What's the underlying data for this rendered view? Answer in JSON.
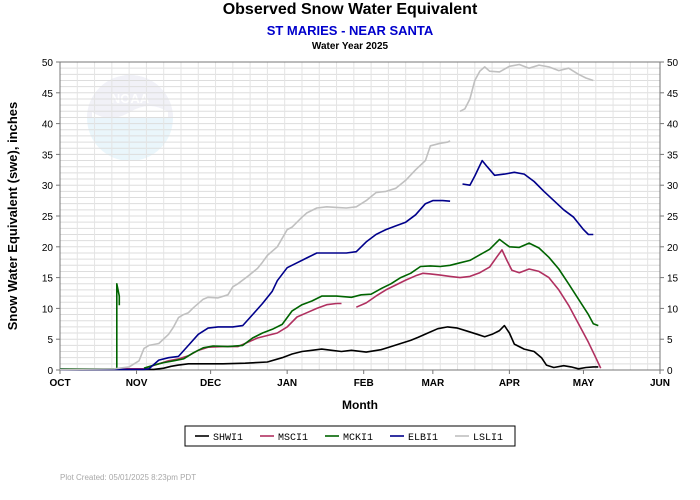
{
  "header": {
    "title": "Observed Snow Water Equivalent",
    "subtitle": "ST MARIES - NEAR SANTA",
    "caption": "Water Year 2025"
  },
  "footer": {
    "text": "Plot Created: 05/01/2025 8:23pm PDT"
  },
  "logo": {
    "text": "NOAA",
    "icon": "noaa-logo"
  },
  "chart_data": {
    "type": "line",
    "title": "Observed Snow Water Equivalent",
    "subtitle": "ST MARIES - NEAR SANTA",
    "xlabel": "Month",
    "ylabel": "Snow Water Equivalent (swe),  inches",
    "x_unit": "day of water year",
    "x_ticks": [
      {
        "label": "OCT",
        "x": 0
      },
      {
        "label": "NOV",
        "x": 31
      },
      {
        "label": "DEC",
        "x": 61
      },
      {
        "label": "JAN",
        "x": 92
      },
      {
        "label": "FEB",
        "x": 123
      },
      {
        "label": "MAR",
        "x": 151
      },
      {
        "label": "APR",
        "x": 182
      },
      {
        "label": "MAY",
        "x": 212
      },
      {
        "label": "JUN",
        "x": 243
      }
    ],
    "xlim": [
      0,
      243
    ],
    "ylim": [
      0,
      50
    ],
    "y_ticks": [
      0,
      5,
      10,
      15,
      20,
      25,
      30,
      35,
      40,
      45,
      50
    ],
    "grid": true,
    "legend_position": "bottom",
    "series": [
      {
        "name": "SHWI1",
        "color": "#000000",
        "segments": [
          [
            [
              0,
              0.1
            ],
            [
              38,
              0.1
            ],
            [
              42,
              0.3
            ],
            [
              45,
              0.6
            ],
            [
              48,
              0.8
            ],
            [
              52,
              1.0
            ],
            [
              60,
              1.0
            ],
            [
              66,
              1.0
            ],
            [
              75,
              1.1
            ],
            [
              84,
              1.3
            ],
            [
              90,
              2.0
            ],
            [
              94,
              2.6
            ],
            [
              98,
              3.0
            ],
            [
              102,
              3.2
            ],
            [
              106,
              3.4
            ],
            [
              110,
              3.2
            ],
            [
              114,
              3.0
            ],
            [
              118,
              3.2
            ],
            [
              124,
              2.9
            ],
            [
              130,
              3.3
            ],
            [
              134,
              3.8
            ],
            [
              138,
              4.3
            ],
            [
              142,
              4.8
            ],
            [
              145,
              5.3
            ],
            [
              149,
              6.0
            ],
            [
              153,
              6.7
            ],
            [
              157,
              7.0
            ],
            [
              161,
              6.8
            ],
            [
              165,
              6.3
            ],
            [
              169,
              5.8
            ],
            [
              172,
              5.4
            ],
            [
              175,
              5.8
            ],
            [
              178,
              6.4
            ],
            [
              180,
              7.2
            ],
            [
              182,
              6.0
            ],
            [
              184,
              4.2
            ],
            [
              188,
              3.4
            ],
            [
              192,
              3.0
            ],
            [
              195,
              2.0
            ],
            [
              197,
              0.8
            ],
            [
              200,
              0.4
            ],
            [
              204,
              0.7
            ],
            [
              207,
              0.5
            ],
            [
              210,
              0.2
            ],
            [
              213,
              0.4
            ],
            [
              216,
              0.5
            ],
            [
              218,
              0.5
            ]
          ]
        ]
      },
      {
        "name": "MSCI1",
        "color": "#b03060",
        "segments": [
          [
            [
              0,
              0.2
            ],
            [
              34,
              0.2
            ],
            [
              36,
              0.5
            ],
            [
              40,
              1.0
            ],
            [
              44,
              1.5
            ],
            [
              48,
              1.8
            ],
            [
              52,
              2.3
            ],
            [
              56,
              3.2
            ],
            [
              60,
              3.7
            ],
            [
              66,
              3.8
            ],
            [
              72,
              3.8
            ],
            [
              76,
              4.5
            ],
            [
              80,
              5.2
            ],
            [
              84,
              5.6
            ],
            [
              88,
              6.0
            ],
            [
              92,
              7.0
            ],
            [
              96,
              8.6
            ],
            [
              100,
              9.3
            ],
            [
              104,
              10.0
            ],
            [
              108,
              10.6
            ],
            [
              112,
              10.8
            ],
            [
              114,
              10.8
            ]
          ],
          [
            [
              120,
              10.2
            ],
            [
              124,
              10.9
            ],
            [
              128,
              12.0
            ],
            [
              132,
              13.0
            ],
            [
              136,
              13.8
            ],
            [
              140,
              14.6
            ],
            [
              144,
              15.3
            ],
            [
              147,
              15.7
            ],
            [
              150,
              15.6
            ],
            [
              154,
              15.4
            ],
            [
              158,
              15.2
            ],
            [
              162,
              15.0
            ],
            [
              166,
              15.2
            ],
            [
              170,
              15.8
            ],
            [
              174,
              16.7
            ],
            [
              177,
              18.4
            ],
            [
              179,
              19.5
            ],
            [
              181,
              17.8
            ],
            [
              183,
              16.2
            ],
            [
              186,
              15.8
            ],
            [
              190,
              16.4
            ],
            [
              194,
              16.0
            ],
            [
              198,
              15.0
            ],
            [
              202,
              13.0
            ],
            [
              206,
              10.5
            ],
            [
              210,
              7.5
            ],
            [
              214,
              4.5
            ],
            [
              217,
              2.0
            ],
            [
              219,
              0.3
            ]
          ]
        ]
      },
      {
        "name": "MCKI1",
        "color": "#006400",
        "segments": [
          [
            [
              0,
              0.2
            ],
            [
              22,
              0.2
            ],
            [
              23,
              0.2
            ],
            [
              23,
              14.0
            ],
            [
              24,
              12.0
            ],
            [
              24,
              10.5
            ]
          ],
          [
            [
              34,
              0.3
            ],
            [
              38,
              0.8
            ],
            [
              42,
              1.2
            ],
            [
              46,
              1.5
            ],
            [
              50,
              1.8
            ],
            [
              54,
              2.8
            ],
            [
              58,
              3.6
            ],
            [
              62,
              3.9
            ],
            [
              68,
              3.8
            ],
            [
              74,
              4.0
            ],
            [
              78,
              5.2
            ],
            [
              82,
              6.0
            ],
            [
              86,
              6.6
            ],
            [
              90,
              7.4
            ],
            [
              94,
              9.6
            ],
            [
              98,
              10.6
            ],
            [
              102,
              11.2
            ],
            [
              106,
              12.0
            ],
            [
              112,
              12.0
            ],
            [
              118,
              11.8
            ],
            [
              122,
              12.2
            ],
            [
              126,
              12.3
            ],
            [
              130,
              13.2
            ],
            [
              134,
              14.0
            ],
            [
              138,
              15.0
            ],
            [
              142,
              15.7
            ],
            [
              146,
              16.8
            ],
            [
              150,
              16.9
            ],
            [
              154,
              16.8
            ],
            [
              158,
              17.0
            ],
            [
              162,
              17.4
            ],
            [
              166,
              17.8
            ],
            [
              170,
              18.7
            ],
            [
              174,
              19.6
            ],
            [
              176,
              20.4
            ],
            [
              178,
              21.2
            ],
            [
              180,
              20.6
            ],
            [
              182,
              20.0
            ],
            [
              186,
              19.9
            ],
            [
              190,
              20.6
            ],
            [
              194,
              19.8
            ],
            [
              198,
              18.3
            ],
            [
              202,
              16.4
            ],
            [
              206,
              14.0
            ],
            [
              210,
              11.5
            ],
            [
              214,
              9.0
            ],
            [
              216,
              7.5
            ],
            [
              218,
              7.2
            ]
          ]
        ]
      },
      {
        "name": "ELBI1",
        "color": "#00008b",
        "segments": [
          [
            [
              0,
              0.1
            ],
            [
              34,
              0.1
            ],
            [
              36,
              0.2
            ],
            [
              40,
              1.6
            ],
            [
              44,
              2.0
            ],
            [
              48,
              2.2
            ],
            [
              52,
              4.0
            ],
            [
              56,
              5.8
            ],
            [
              60,
              6.8
            ],
            [
              64,
              7.0
            ],
            [
              70,
              7.0
            ],
            [
              74,
              7.2
            ],
            [
              78,
              9.0
            ],
            [
              82,
              10.8
            ],
            [
              86,
              12.8
            ],
            [
              88,
              14.5
            ],
            [
              92,
              16.6
            ],
            [
              96,
              17.4
            ],
            [
              100,
              18.2
            ],
            [
              104,
              19.0
            ],
            [
              110,
              19.0
            ],
            [
              116,
              19.0
            ],
            [
              120,
              19.2
            ],
            [
              124,
              20.8
            ],
            [
              128,
              22.0
            ],
            [
              132,
              22.8
            ],
            [
              136,
              23.4
            ],
            [
              140,
              24.0
            ],
            [
              144,
              25.2
            ],
            [
              148,
              27.0
            ],
            [
              151,
              27.5
            ],
            [
              155,
              27.5
            ],
            [
              158,
              27.4
            ]
          ],
          [
            [
              163,
              30.2
            ],
            [
              166,
              30.0
            ],
            [
              168,
              31.5
            ],
            [
              170,
              33.2
            ],
            [
              171,
              34.0
            ],
            [
              173,
              33.0
            ],
            [
              176,
              31.6
            ],
            [
              180,
              31.8
            ],
            [
              184,
              32.1
            ],
            [
              188,
              31.8
            ],
            [
              192,
              30.6
            ],
            [
              196,
              29.0
            ],
            [
              200,
              27.5
            ],
            [
              204,
              26.0
            ],
            [
              208,
              24.8
            ],
            [
              212,
              22.8
            ],
            [
              214,
              22.0
            ],
            [
              216,
              22.0
            ]
          ]
        ]
      },
      {
        "name": "LSLI1",
        "color": "#c0c0c0",
        "segments": [
          [
            [
              0,
              0.1
            ],
            [
              22,
              0.2
            ],
            [
              28,
              0.5
            ],
            [
              32,
              1.5
            ],
            [
              34,
              3.5
            ],
            [
              36,
              4.0
            ],
            [
              40,
              4.3
            ],
            [
              44,
              5.8
            ],
            [
              46,
              7.0
            ],
            [
              48,
              8.5
            ],
            [
              50,
              9.0
            ],
            [
              52,
              9.3
            ],
            [
              54,
              10.1
            ],
            [
              58,
              11.5
            ],
            [
              60,
              11.8
            ],
            [
              64,
              11.7
            ],
            [
              68,
              12.2
            ],
            [
              70,
              13.5
            ],
            [
              72,
              14.0
            ],
            [
              76,
              15.2
            ],
            [
              80,
              16.5
            ],
            [
              82,
              17.5
            ],
            [
              84,
              18.6
            ],
            [
              88,
              20.0
            ],
            [
              92,
              22.8
            ],
            [
              94,
              23.2
            ],
            [
              98,
              24.8
            ],
            [
              100,
              25.5
            ],
            [
              104,
              26.3
            ],
            [
              108,
              26.5
            ],
            [
              112,
              26.4
            ],
            [
              116,
              26.3
            ],
            [
              120,
              26.5
            ],
            [
              124,
              27.5
            ],
            [
              128,
              28.8
            ],
            [
              132,
              29.0
            ],
            [
              136,
              29.5
            ],
            [
              140,
              30.8
            ],
            [
              144,
              32.5
            ],
            [
              148,
              34.0
            ],
            [
              150,
              36.4
            ],
            [
              154,
              36.8
            ],
            [
              157,
              37.0
            ],
            [
              158,
              37.2
            ]
          ],
          [
            [
              162,
              42.0
            ],
            [
              164,
              42.4
            ],
            [
              166,
              44.0
            ],
            [
              168,
              47.0
            ],
            [
              170,
              48.5
            ],
            [
              172,
              49.2
            ],
            [
              174,
              48.5
            ],
            [
              178,
              48.4
            ],
            [
              182,
              49.3
            ],
            [
              186,
              49.6
            ],
            [
              190,
              49.0
            ],
            [
              194,
              49.5
            ],
            [
              198,
              49.2
            ],
            [
              202,
              48.6
            ],
            [
              206,
              49.0
            ],
            [
              210,
              48.0
            ],
            [
              213,
              47.4
            ],
            [
              216,
              47.0
            ]
          ]
        ]
      }
    ]
  }
}
